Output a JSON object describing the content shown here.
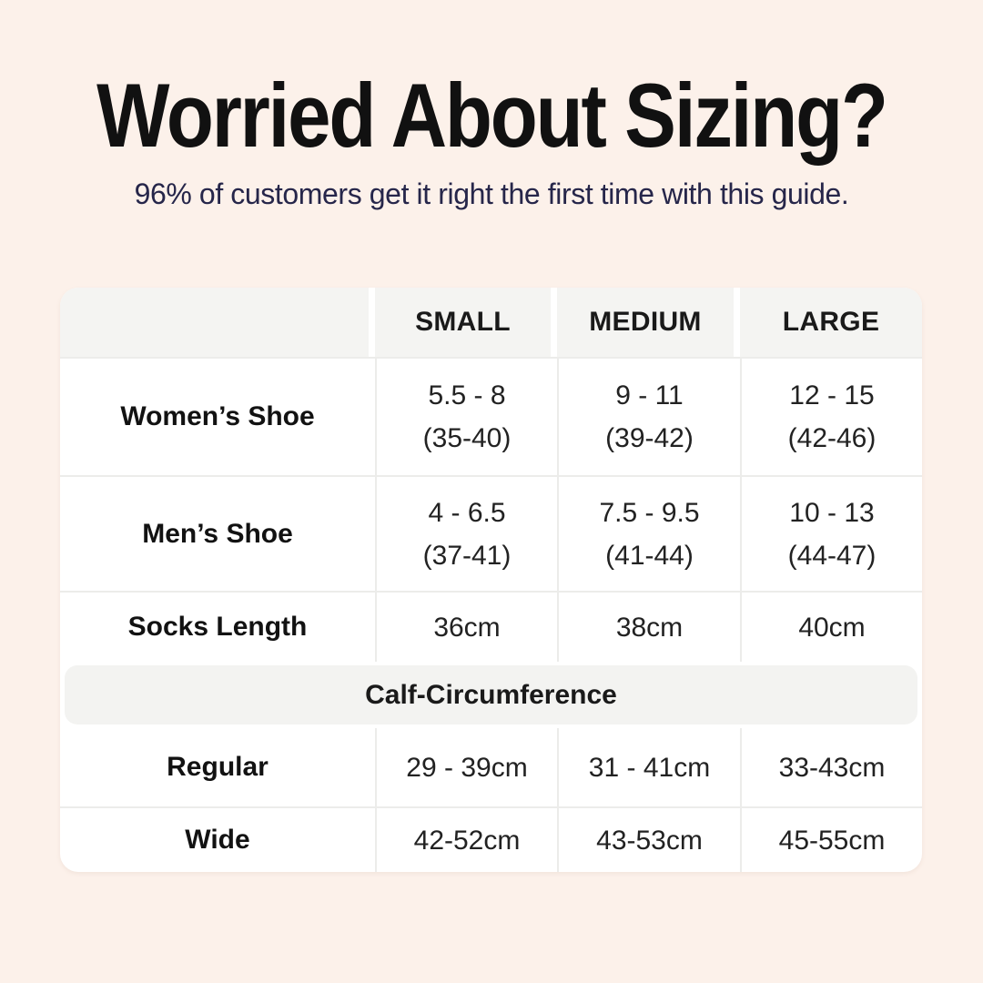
{
  "chart_data": {
    "type": "table",
    "title": "Worried About Sizing?",
    "subtitle": "96% of customers get it right the first time with this guide.",
    "column_headers": [
      "SMALL",
      "MEDIUM",
      "LARGE"
    ],
    "shoe_rows": [
      {
        "label": "Women’s Shoe",
        "cells": [
          {
            "us": "5.5 - 8",
            "eu": "(35-40)"
          },
          {
            "us": "9 - 11",
            "eu": "(39-42)"
          },
          {
            "us": "12 - 15",
            "eu": "(42-46)"
          }
        ]
      },
      {
        "label": "Men’s Shoe",
        "cells": [
          {
            "us": "4 - 6.5",
            "eu": "(37-41)"
          },
          {
            "us": "7.5 - 9.5",
            "eu": "(41-44)"
          },
          {
            "us": "10 - 13",
            "eu": "(44-47)"
          }
        ]
      }
    ],
    "socks_row": {
      "label": "Socks Length",
      "values": [
        "36cm",
        "38cm",
        "40cm"
      ]
    },
    "calf_section_header": "Calf-Circumference",
    "calf_rows": [
      {
        "label": "Regular",
        "values": [
          "29 - 39cm",
          "31 - 41cm",
          "33-43cm"
        ]
      },
      {
        "label": "Wide",
        "values": [
          "42-52cm",
          "43-53cm",
          "45-55cm"
        ]
      }
    ],
    "layout_hints": {
      "grid": "on",
      "header_row_background": "light-gray",
      "calf_header_spans_all_columns": true
    }
  },
  "colors": {
    "page_background": "#fcf1ea",
    "card_background": "#ffffff",
    "header_cell_background": "#f4f4f2",
    "grid_line": "#ececea",
    "title_text": "#111111",
    "subtitle_text": "#26264a",
    "table_text": "#1c1c1c"
  }
}
